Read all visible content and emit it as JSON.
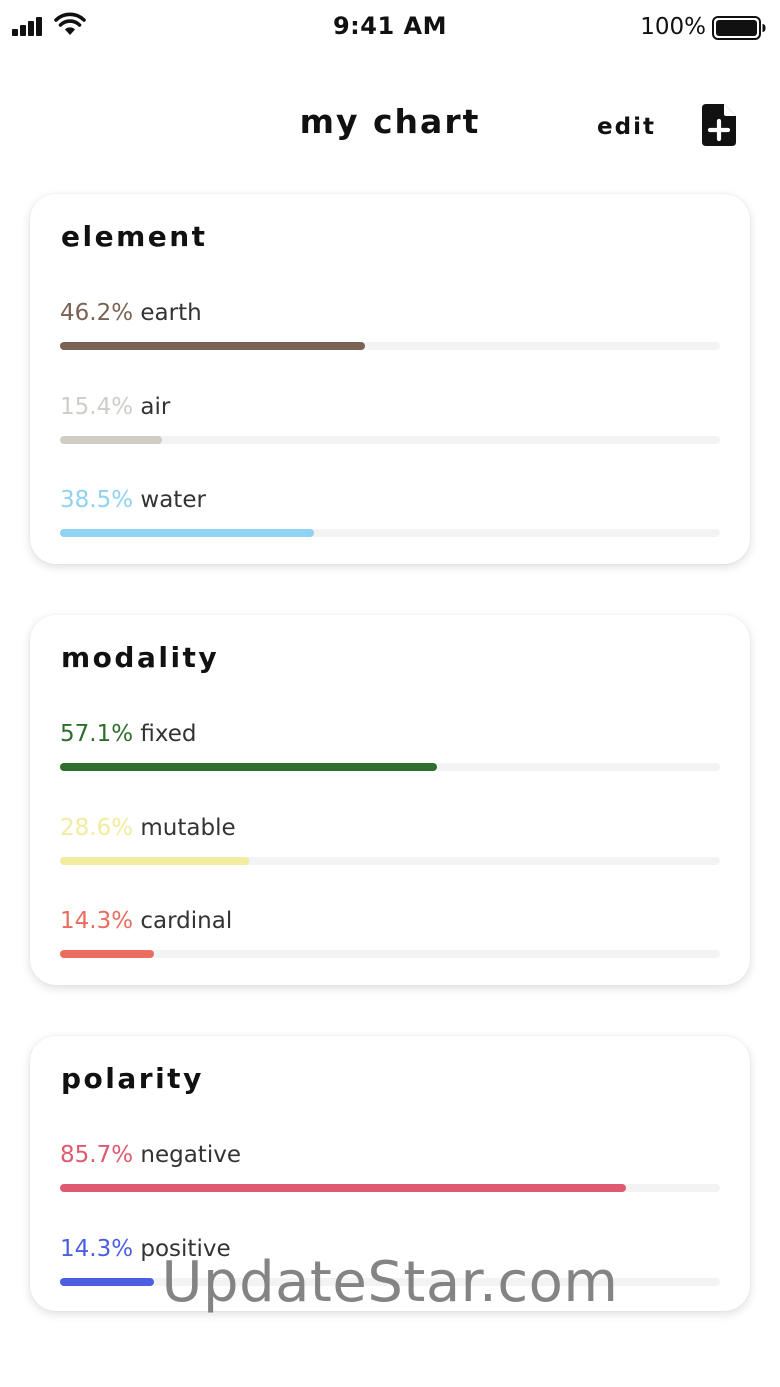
{
  "status_bar": {
    "time": "9:41 AM",
    "battery_percent": "100%",
    "signal_icon": "cellular-signal-icon",
    "wifi_icon": "wifi-icon",
    "battery_icon": "battery-full-icon"
  },
  "header": {
    "title": "my chart",
    "edit_label": "edit",
    "add_icon": "file-plus-icon"
  },
  "sections": [
    {
      "title": "element",
      "items": [
        {
          "percent": "46.2%",
          "name": "earth",
          "value": 0.462,
          "color": "#7a6353"
        },
        {
          "percent": "15.4%",
          "name": "air",
          "value": 0.154,
          "color": "#cfcdc6"
        },
        {
          "percent": "38.5%",
          "name": "water",
          "value": 0.385,
          "color": "#8fd2f2"
        }
      ]
    },
    {
      "title": "modality",
      "items": [
        {
          "percent": "57.1%",
          "name": "fixed",
          "value": 0.571,
          "color": "#2e6e2c"
        },
        {
          "percent": "28.6%",
          "name": "mutable",
          "value": 0.286,
          "color": "#f1ec9e"
        },
        {
          "percent": "14.3%",
          "name": "cardinal",
          "value": 0.143,
          "color": "#ea6d5e"
        }
      ]
    },
    {
      "title": "polarity",
      "items": [
        {
          "percent": "85.7%",
          "name": "negative",
          "value": 0.857,
          "color": "#df5a70"
        },
        {
          "percent": "14.3%",
          "name": "positive",
          "value": 0.143,
          "color": "#4c5fe0"
        }
      ]
    }
  ],
  "watermark": "UpdateStar.com"
}
